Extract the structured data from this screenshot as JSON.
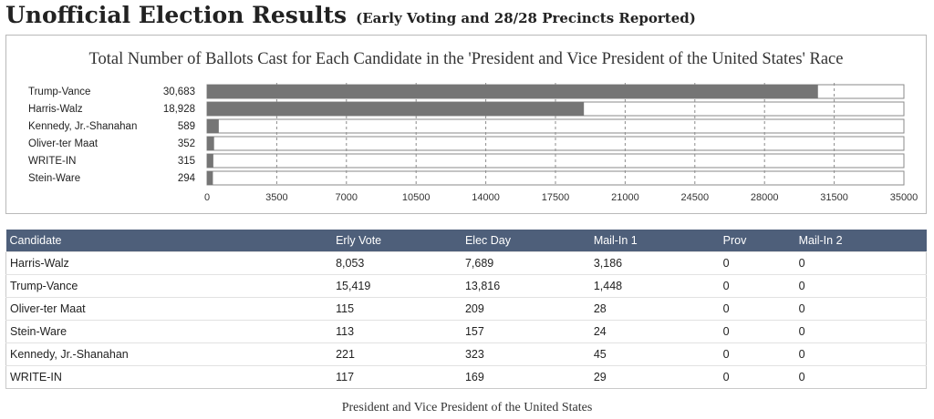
{
  "header": {
    "title": "Unofficial Election Results",
    "subtitle": "(Early Voting and 28/28 Precincts Reported)"
  },
  "chart_data": {
    "type": "bar",
    "orientation": "horizontal",
    "title": "Total Number of Ballots Cast for Each Candidate in the 'President and Vice President of the United States' Race",
    "categories": [
      "Trump-Vance",
      "Harris-Walz",
      "Kennedy, Jr.-Shanahan",
      "Oliver-ter Maat",
      "WRITE-IN",
      "Stein-Ware"
    ],
    "values": [
      30683,
      18928,
      589,
      352,
      315,
      294
    ],
    "value_labels": [
      "30,683",
      "18,928",
      "589",
      "352",
      "315",
      "294"
    ],
    "xlim": [
      0,
      35000
    ],
    "xticks": [
      0,
      3500,
      7000,
      10500,
      14000,
      17500,
      21000,
      24500,
      28000,
      31500,
      35000
    ],
    "grid": "vertical dashed",
    "bar_color": "#757575"
  },
  "table": {
    "headers": [
      "Candidate",
      "Erly Vote",
      "Elec Day",
      "Mail-In 1",
      "Prov",
      "Mail-In 2"
    ],
    "rows": [
      [
        "Harris-Walz",
        "8,053",
        "7,689",
        "3,186",
        "0",
        "0"
      ],
      [
        "Trump-Vance",
        "15,419",
        "13,816",
        "1,448",
        "0",
        "0"
      ],
      [
        "Oliver-ter Maat",
        "115",
        "209",
        "28",
        "0",
        "0"
      ],
      [
        "Stein-Ware",
        "113",
        "157",
        "24",
        "0",
        "0"
      ],
      [
        "Kennedy, Jr.-Shanahan",
        "221",
        "323",
        "45",
        "0",
        "0"
      ],
      [
        "WRITE-IN",
        "117",
        "169",
        "29",
        "0",
        "0"
      ]
    ]
  },
  "footer": {
    "race": "President and Vice President of the United States"
  }
}
